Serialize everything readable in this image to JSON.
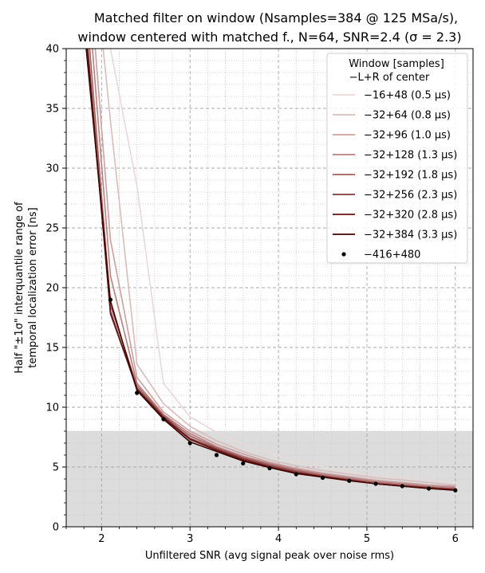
{
  "chart_data": {
    "type": "line",
    "title_lines": [
      "Matched filter on window (Nsamples=384 @ 125 MSa/s),",
      "window centered with matched f., N=64, SNR=2.4 (σ = 2.3)"
    ],
    "xlabel": "Unfiltered SNR (avg signal peak over noise rms)",
    "ylabel_lines": [
      "Half \"±1σ\" interquantile range of",
      "temporal localization error [ns]"
    ],
    "xlim": [
      1.6,
      6.2
    ],
    "ylim": [
      0,
      40
    ],
    "x_ticks": [
      2,
      3,
      4,
      5,
      6
    ],
    "y_ticks": [
      0,
      5,
      10,
      15,
      20,
      25,
      30,
      35,
      40
    ],
    "grid": true,
    "shaded_band": {
      "y0": 0,
      "y1": 8,
      "color": "#dcdcdc"
    },
    "legend": {
      "placement": "top-right",
      "title_lines": [
        "Window [samples]",
        "−L+R of center"
      ]
    },
    "x": [
      1.8,
      2.1,
      2.4,
      2.7,
      3.0,
      3.3,
      3.6,
      3.9,
      4.2,
      4.5,
      4.8,
      5.1,
      5.4,
      5.7,
      6.0
    ],
    "series": [
      {
        "name": "−16+48 (0.5 μs)",
        "color": "#e8d9d9",
        "values": [
          55,
          40,
          28.5,
          12,
          9.2,
          7.9,
          6.9,
          6.1,
          5.5,
          5.0,
          4.6,
          4.3,
          4.1,
          3.9,
          3.7
        ]
      },
      {
        "name": "−32+64 (0.8 μs)",
        "color": "#d9bcbc",
        "values": [
          56,
          34,
          13.6,
          10.3,
          8.4,
          7.2,
          6.3,
          5.6,
          5.1,
          4.7,
          4.4,
          4.1,
          3.9,
          3.7,
          3.5
        ]
      },
      {
        "name": "−32+96 (1.0 μs)",
        "color": "#c9a0a0",
        "values": [
          52,
          24,
          12.5,
          9.6,
          8.0,
          6.9,
          6.1,
          5.4,
          4.9,
          4.5,
          4.2,
          3.9,
          3.7,
          3.5,
          3.4
        ]
      },
      {
        "name": "−32+128 (1.3 μs)",
        "color": "#b78080",
        "values": [
          49,
          21,
          12.0,
          9.4,
          7.8,
          6.7,
          5.9,
          5.3,
          4.8,
          4.4,
          4.1,
          3.8,
          3.6,
          3.4,
          3.3
        ]
      },
      {
        "name": "−32+192 (1.8 μs)",
        "color": "#a05f5f",
        "values": [
          46,
          18.5,
          11.8,
          9.3,
          7.6,
          6.6,
          5.8,
          5.2,
          4.7,
          4.3,
          4.0,
          3.7,
          3.5,
          3.3,
          3.2
        ]
      },
      {
        "name": "−32+256 (2.3 μs)",
        "color": "#7e3a3a",
        "values": [
          44,
          17.8,
          11.6,
          9.2,
          7.4,
          6.5,
          5.7,
          5.1,
          4.6,
          4.2,
          3.9,
          3.6,
          3.4,
          3.3,
          3.1
        ]
      },
      {
        "name": "−32+320 (2.8 μs)",
        "color": "#6a1010",
        "values": [
          43,
          18.0,
          11.5,
          9.1,
          7.3,
          6.4,
          5.6,
          5.0,
          4.5,
          4.2,
          3.9,
          3.6,
          3.4,
          3.2,
          3.1
        ]
      },
      {
        "name": "−32+384 (3.3 μs)",
        "color": "#450000",
        "values": [
          42,
          18.9,
          11.4,
          9.0,
          7.1,
          6.3,
          5.5,
          4.95,
          4.45,
          4.15,
          3.85,
          3.6,
          3.4,
          3.2,
          3.05
        ]
      }
    ],
    "points": {
      "name": "−416+480",
      "color": "#000000",
      "x": [
        2.1,
        2.4,
        2.7,
        3.0,
        3.3,
        3.6,
        3.9,
        4.2,
        4.5,
        4.8,
        5.1,
        5.4,
        5.7,
        6.0
      ],
      "values": [
        19.0,
        11.2,
        9.0,
        7.0,
        6.0,
        5.3,
        4.9,
        4.4,
        4.1,
        3.85,
        3.6,
        3.4,
        3.2,
        3.05
      ]
    }
  }
}
